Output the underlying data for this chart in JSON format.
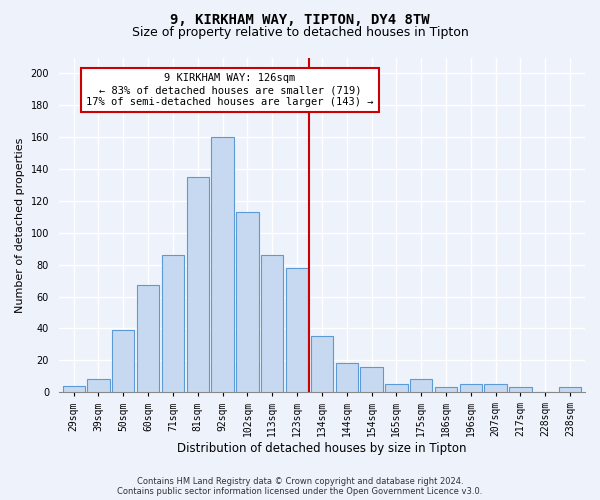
{
  "title": "9, KIRKHAM WAY, TIPTON, DY4 8TW",
  "subtitle": "Size of property relative to detached houses in Tipton",
  "xlabel": "Distribution of detached houses by size in Tipton",
  "ylabel": "Number of detached properties",
  "bar_labels": [
    "29sqm",
    "39sqm",
    "50sqm",
    "60sqm",
    "71sqm",
    "81sqm",
    "92sqm",
    "102sqm",
    "113sqm",
    "123sqm",
    "134sqm",
    "144sqm",
    "154sqm",
    "165sqm",
    "175sqm",
    "186sqm",
    "196sqm",
    "207sqm",
    "217sqm",
    "228sqm",
    "238sqm"
  ],
  "bar_values": [
    4,
    8,
    39,
    67,
    86,
    135,
    160,
    113,
    86,
    78,
    35,
    18,
    16,
    5,
    8,
    3,
    5,
    5,
    3,
    0,
    3
  ],
  "bar_color": "#c6d9f0",
  "bar_edgecolor": "#5b9bd5",
  "property_label": "9 KIRKHAM WAY: 126sqm",
  "annotation_line1": "← 83% of detached houses are smaller (719)",
  "annotation_line2": "17% of semi-detached houses are larger (143) →",
  "vline_color": "#cc0000",
  "annotation_box_edgecolor": "#cc0000",
  "annotation_box_facecolor": "#ffffff",
  "footer_line1": "Contains HM Land Registry data © Crown copyright and database right 2024.",
  "footer_line2": "Contains public sector information licensed under the Open Government Licence v3.0.",
  "ylim": [
    0,
    210
  ],
  "yticks": [
    0,
    20,
    40,
    60,
    80,
    100,
    120,
    140,
    160,
    180,
    200
  ],
  "background_color": "#eef2fb",
  "grid_color": "#ffffff",
  "title_fontsize": 10,
  "subtitle_fontsize": 9,
  "xlabel_fontsize": 8.5,
  "ylabel_fontsize": 8,
  "tick_fontsize": 7,
  "footer_fontsize": 6,
  "annot_fontsize": 7.5,
  "vline_index": 9.5
}
